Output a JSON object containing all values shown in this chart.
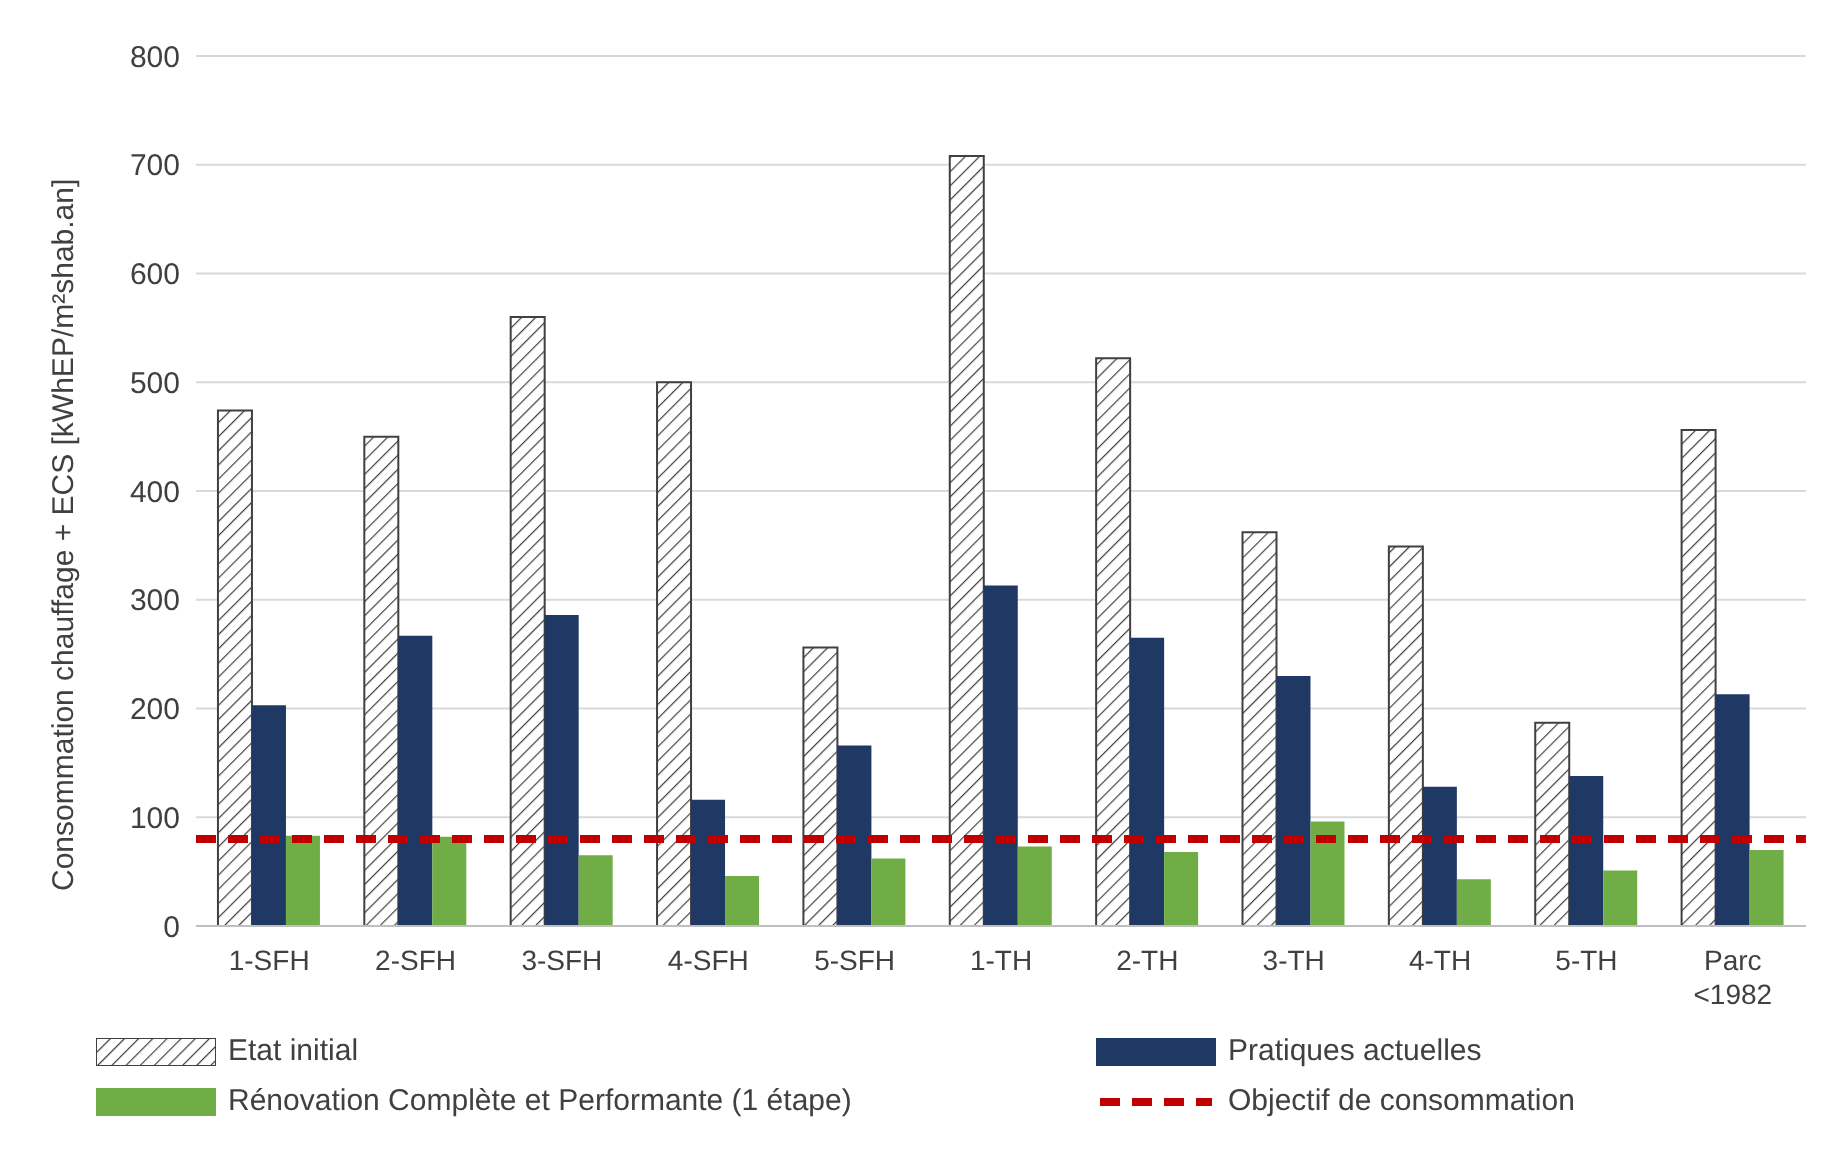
{
  "chart_data": {
    "type": "bar",
    "ylabel": "Consommation chauffage + ECS [kWhEP/m²shab.an]",
    "categories": [
      "1-SFH",
      "2-SFH",
      "3-SFH",
      "4-SFH",
      "5-SFH",
      "1-TH",
      "2-TH",
      "3-TH",
      "4-TH",
      "5-TH",
      "Parc <1982"
    ],
    "series": [
      {
        "name": "Etat initial",
        "color": "#404040",
        "values": [
          474,
          450,
          560,
          500,
          256,
          708,
          522,
          362,
          349,
          187,
          456
        ]
      },
      {
        "name": "Pratiques actuelles",
        "color": "#1f3864",
        "values": [
          203,
          267,
          286,
          116,
          166,
          313,
          265,
          230,
          128,
          138,
          213
        ]
      },
      {
        "name": "Rénovation Complète et Performante (1 étape)",
        "color": "#70ad47",
        "values": [
          83,
          82,
          65,
          46,
          62,
          73,
          68,
          96,
          43,
          51,
          70
        ]
      }
    ],
    "ref_lines": [
      {
        "axis": "y",
        "value": 80,
        "label": "Objectif de consommation",
        "color": "#c00000",
        "line_style": "dashed"
      }
    ],
    "ylim": [
      0,
      800
    ],
    "yticks": [
      0,
      100,
      200,
      300,
      400,
      500,
      600,
      700,
      800
    ],
    "grid": "y",
    "legend": "bottom"
  }
}
